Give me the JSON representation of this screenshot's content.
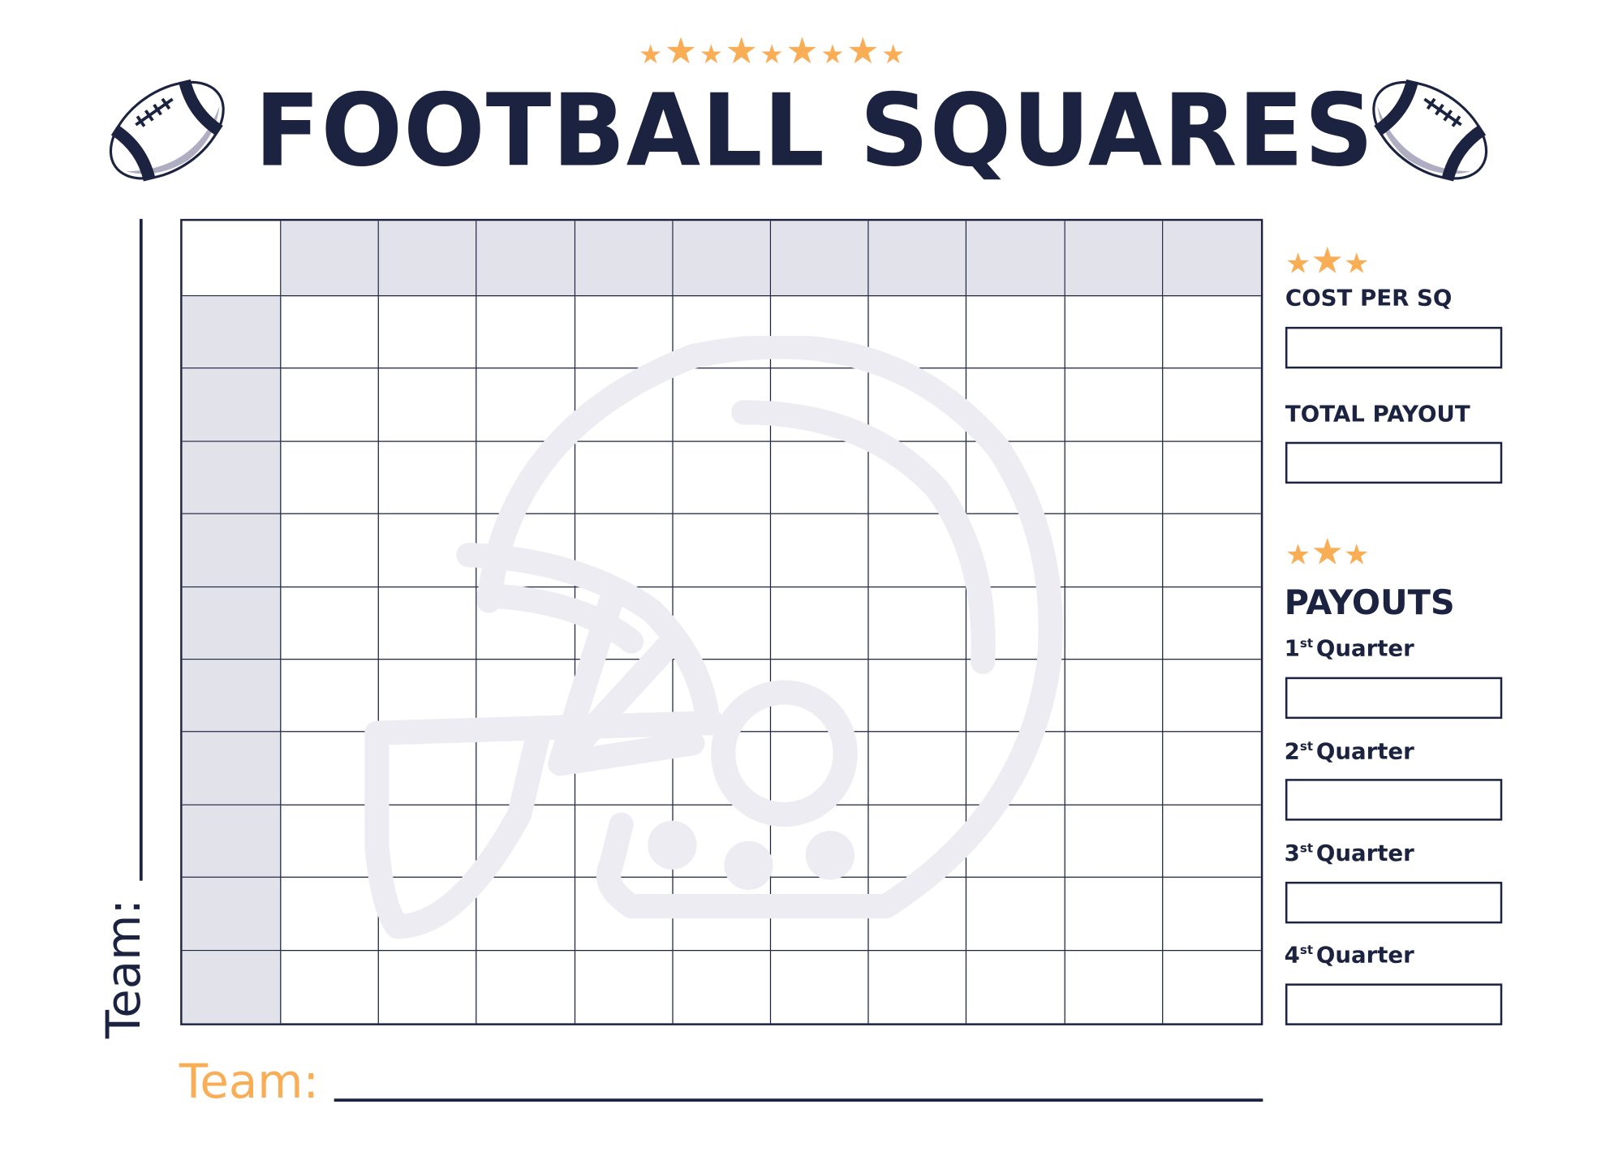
{
  "header": {
    "title": "FOOTBALL SQUARES",
    "decor_icons": [
      "football-icon",
      "star-icon"
    ]
  },
  "grid": {
    "columns": 10,
    "rows": 10
  },
  "team_labels": {
    "vertical": "Team:",
    "horizontal": "Team:"
  },
  "sidebar": {
    "cost_label": "COST PER SQ",
    "total_label": "TOTAL PAYOUT",
    "payouts_heading": "PAYOUTS",
    "quarters": [
      {
        "num": "1",
        "sup": "st",
        "label": "Quarter"
      },
      {
        "num": "2",
        "sup": "st",
        "label": "Quarter"
      },
      {
        "num": "3",
        "sup": "st",
        "label": "Quarter"
      },
      {
        "num": "4",
        "sup": "st",
        "label": "Quarter"
      }
    ]
  },
  "colors": {
    "navy": "#1b2340",
    "orange": "#f9ad55",
    "header_fill": "#dfe0e9",
    "watermark": "#ececf2"
  }
}
